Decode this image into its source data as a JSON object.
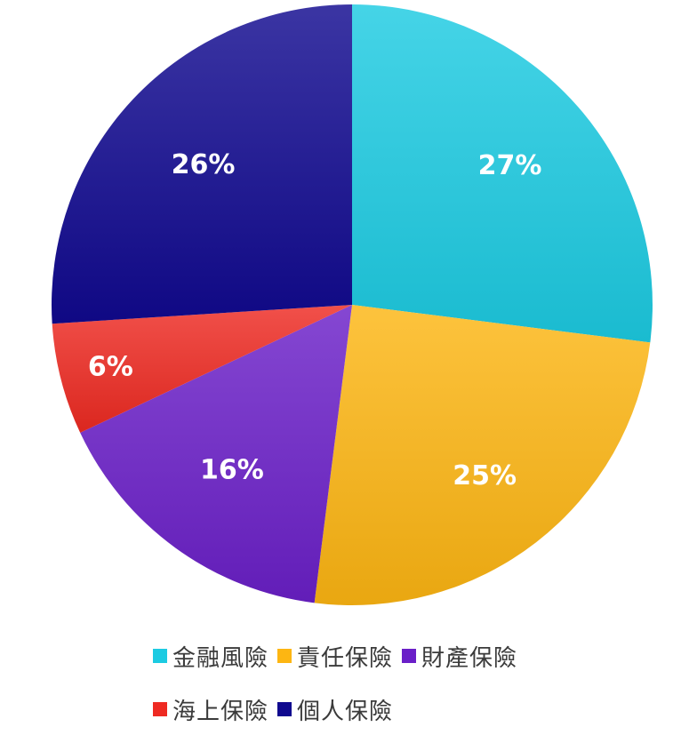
{
  "chart_data": {
    "type": "pie",
    "categories": [
      "金融風險",
      "責任保險",
      "財產保險",
      "海上保險",
      "個人保險"
    ],
    "values": [
      27,
      25,
      16,
      6,
      26
    ],
    "data_labels": [
      "27%",
      "25%",
      "16%",
      "6%",
      "26%"
    ],
    "colors": [
      "#1ccbe2",
      "#fdb612",
      "#6a1fc8",
      "#ee2a22",
      "#10098f"
    ],
    "legend_position": "bottom",
    "start_angle": "12 o'clock",
    "direction": "clockwise"
  }
}
